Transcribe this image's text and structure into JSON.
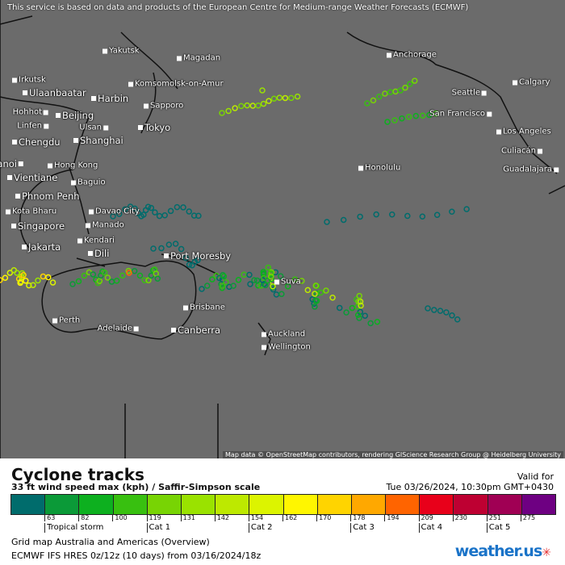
{
  "banner": "This service is based on data and products of the European Centre for Medium-range Weather Forecasts (ECMWF)",
  "attribution": "Map data © OpenStreetMap contributors, rendering GIScience Research Group @ Heidelberg University",
  "cities": [
    {
      "name": "Yakutsk"
    },
    {
      "name": "Magadan"
    },
    {
      "name": "Irkutsk"
    },
    {
      "name": "Ulaanbaatar"
    },
    {
      "name": "Komsomolsk-on-Amur"
    },
    {
      "name": "Harbin"
    },
    {
      "name": "Sapporo"
    },
    {
      "name": "Hohhot"
    },
    {
      "name": "Beijing"
    },
    {
      "name": "Linfen"
    },
    {
      "name": "Ulsan"
    },
    {
      "name": "Tokyo"
    },
    {
      "name": "Chengdu"
    },
    {
      "name": "Shanghai"
    },
    {
      "name": "Hanoi"
    },
    {
      "name": "Hong Kong"
    },
    {
      "name": "Vientiane"
    },
    {
      "name": "Baguio"
    },
    {
      "name": "Phnom Penh"
    },
    {
      "name": "Kota Bharu"
    },
    {
      "name": "Davao City"
    },
    {
      "name": "Singapore"
    },
    {
      "name": "Manado"
    },
    {
      "name": "Kendari"
    },
    {
      "name": "Jakarta"
    },
    {
      "name": "Dili"
    },
    {
      "name": "Port Moresby"
    },
    {
      "name": "Anchorage"
    },
    {
      "name": "Calgary"
    },
    {
      "name": "Seattle"
    },
    {
      "name": "San Francisco"
    },
    {
      "name": "Los Angeles"
    },
    {
      "name": "Culiacán"
    },
    {
      "name": "Guadalajara"
    },
    {
      "name": "Honolulu"
    },
    {
      "name": "Suva"
    },
    {
      "name": "Brisbane"
    },
    {
      "name": "Perth"
    },
    {
      "name": "Adelaide"
    },
    {
      "name": "Canberra"
    },
    {
      "name": "Auckland"
    },
    {
      "name": "Wellington"
    }
  ],
  "legend": {
    "title": "Cyclone tracks",
    "subtitle": "33 ft wind speed max (kph) / Saffir-Simpson scale",
    "valid_label": "Valid for",
    "valid_time": "Tue 03/26/2024, 10:30pm GMT+0430",
    "colors": [
      "#006c6c",
      "#0b9a38",
      "#0db01f",
      "#38c010",
      "#78d404",
      "#9ae200",
      "#bde900",
      "#dcf400",
      "#fff600",
      "#ffd400",
      "#ffa800",
      "#ff6400",
      "#e8001a",
      "#be0032",
      "#a00054",
      "#6e0082"
    ],
    "ticks": [
      "63",
      "82",
      "100",
      "119",
      "131",
      "142",
      "154",
      "162",
      "170",
      "178",
      "194",
      "209",
      "230",
      "251",
      "275"
    ],
    "categories": [
      "Tropical storm",
      "Cat 1",
      "Cat 2",
      "Cat 3",
      "Cat 4",
      "Cat 5"
    ],
    "grid": "Grid map Australia and Americas (Overview)",
    "model": "ECMWF IFS HRES 0z/12z (10 days) from  03/16/2024/18z",
    "logo": "weather.us"
  }
}
